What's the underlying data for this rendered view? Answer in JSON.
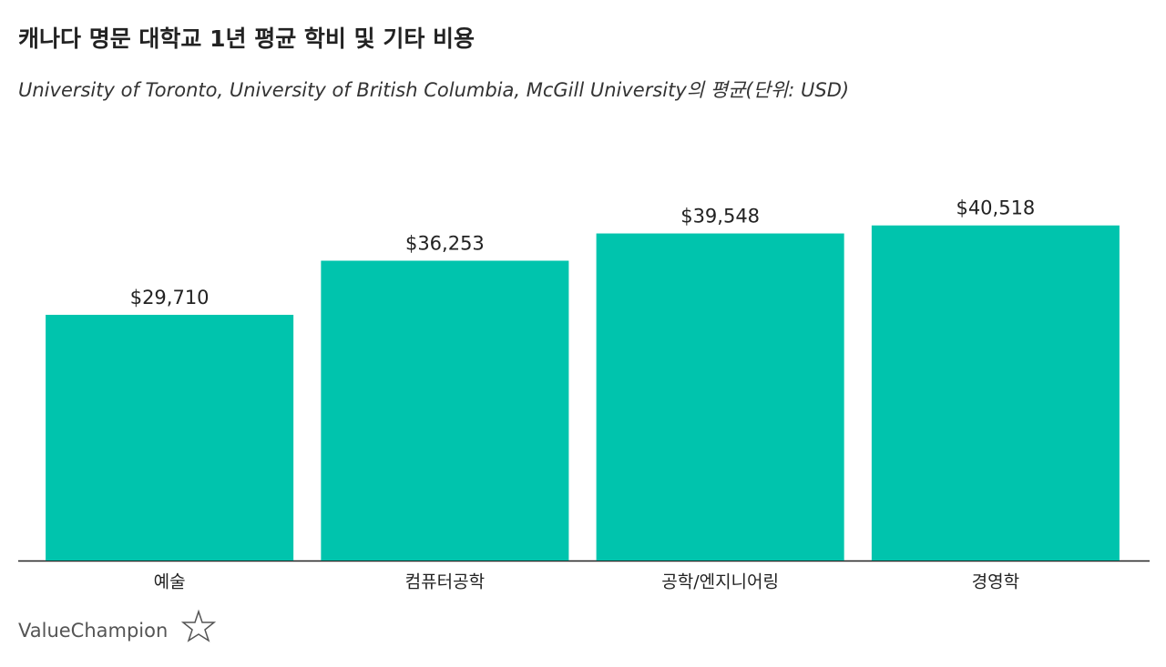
{
  "chart_data": {
    "type": "bar",
    "title": "캐나다 명문 대학교 1년 평균 학비 및 기타 비용",
    "subtitle": "University of Toronto, University of British Columbia, McGill University의 평균(단위: USD)",
    "categories": [
      "예술",
      "컴퓨터공학",
      "공학/엔지니어링",
      "경영학"
    ],
    "values": [
      29710,
      36253,
      39548,
      40518
    ],
    "value_labels": [
      "$29,710",
      "$36,253",
      "$39,548",
      "$40,518"
    ],
    "color": "#00c4ad",
    "ylim": [
      0,
      45000
    ],
    "grid": false
  },
  "logo": "ValueChampion"
}
